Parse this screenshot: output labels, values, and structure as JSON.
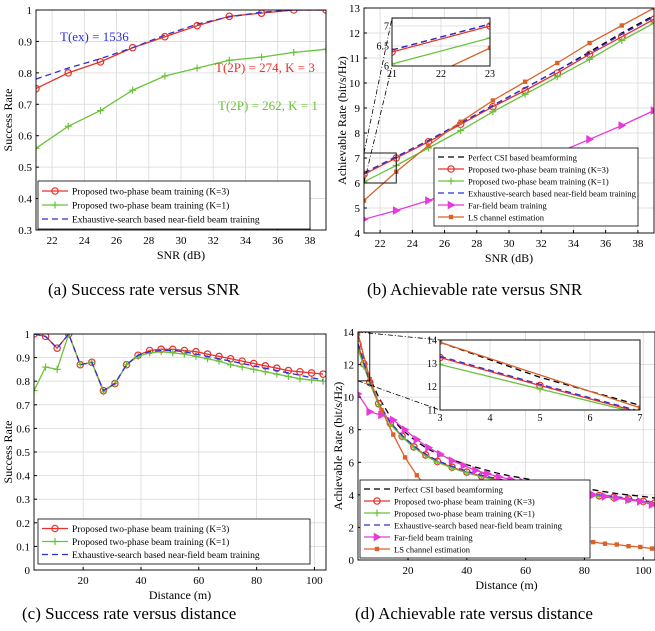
{
  "colors": {
    "red": "#e8312a",
    "green": "#6ac23a",
    "blue": "#2f2fd8",
    "black": "#000000",
    "magenta": "#e83ad8",
    "orange": "#d9622a",
    "grid": "#d9d9d9"
  },
  "chart_data": [
    {
      "type": "line",
      "caption": "(a) Success rate versus SNR",
      "xlabel": "SNR (dB)",
      "ylabel": "Success Rate",
      "xlim": [
        21,
        39
      ],
      "ylim": [
        0.3,
        1
      ],
      "xticks": [
        22,
        24,
        26,
        28,
        30,
        32,
        34,
        36,
        38
      ],
      "yticks": [
        0.3,
        0.4,
        0.5,
        0.6,
        0.7,
        0.8,
        0.9,
        1
      ],
      "ytick_labels": [
        "0.3",
        "0.4",
        "0.5",
        "0.6",
        "0.7",
        "0.8",
        "0.9",
        "1"
      ],
      "grid": true,
      "legend_position": "bottom-left",
      "annotations": [
        {
          "text": "T(ex) = 1536",
          "color": "blue"
        },
        {
          "text": "T(2P) = 274, K = 3",
          "color": "red"
        },
        {
          "text": "T(2P) = 262, K = 1",
          "color": "green"
        }
      ],
      "series": [
        {
          "name": "Proposed two-phase beam training (K=3)",
          "color": "red",
          "marker": "circle",
          "x": [
            21,
            23,
            25,
            27,
            29,
            31,
            33,
            35,
            37,
            39
          ],
          "y": [
            0.75,
            0.8,
            0.835,
            0.88,
            0.915,
            0.95,
            0.98,
            0.99,
            1.0,
            1.0
          ]
        },
        {
          "name": "Proposed two-phase beam training (K=1)",
          "color": "green",
          "marker": "plus",
          "x": [
            21,
            23,
            25,
            27,
            29,
            31,
            33,
            35,
            37,
            39
          ],
          "y": [
            0.56,
            0.63,
            0.68,
            0.745,
            0.79,
            0.815,
            0.84,
            0.85,
            0.865,
            0.875
          ]
        },
        {
          "name": "Exhaustive-search based near-field beam training",
          "color": "blue",
          "dash": "6 4",
          "x": [
            21,
            23,
            25,
            27,
            29,
            31,
            33,
            35,
            37,
            39
          ],
          "y": [
            0.78,
            0.815,
            0.845,
            0.88,
            0.92,
            0.955,
            0.978,
            0.993,
            1.0,
            1.0
          ]
        }
      ]
    },
    {
      "type": "line",
      "caption": "(b) Achievable rate versus SNR",
      "xlabel": "SNR (dB)",
      "ylabel": "Achievable Rate (bit/s/Hz)",
      "xlim": [
        21,
        39
      ],
      "ylim": [
        4,
        13
      ],
      "xticks": [
        22,
        24,
        26,
        28,
        30,
        32,
        34,
        36,
        38
      ],
      "yticks": [
        4,
        5,
        6,
        7,
        8,
        9,
        10,
        11,
        12,
        13
      ],
      "grid": true,
      "legend_position": "bottom-right",
      "series": [
        {
          "name": "Perfect CSI based beamforming",
          "color": "black",
          "dash": "6 4",
          "x": [
            21,
            23,
            25,
            27,
            29,
            31,
            33,
            35,
            37,
            39
          ],
          "y": [
            6.4,
            7.05,
            7.7,
            8.4,
            9.1,
            9.8,
            10.5,
            11.25,
            12.0,
            12.7
          ]
        },
        {
          "name": "Proposed two-phase beam training (K=3)",
          "color": "red",
          "marker": "circle",
          "x": [
            21,
            23,
            25,
            27,
            29,
            31,
            33,
            35,
            37,
            39
          ],
          "y": [
            6.35,
            7.0,
            7.65,
            8.35,
            9.05,
            9.7,
            10.4,
            11.15,
            11.85,
            12.55
          ]
        },
        {
          "name": "Proposed two-phase beam training (K=1)",
          "color": "green",
          "marker": "plus",
          "x": [
            21,
            23,
            25,
            27,
            29,
            31,
            33,
            35,
            37,
            39
          ],
          "y": [
            6.05,
            6.7,
            7.4,
            8.1,
            8.85,
            9.55,
            10.25,
            10.95,
            11.7,
            12.4
          ]
        },
        {
          "name": "Exhaustive-search based near-field beam training",
          "color": "blue",
          "dash": "6 4",
          "x": [
            21,
            23,
            25,
            27,
            29,
            31,
            33,
            35,
            37,
            39
          ],
          "y": [
            6.4,
            7.05,
            7.7,
            8.4,
            9.1,
            9.8,
            10.5,
            11.2,
            11.95,
            12.65
          ]
        },
        {
          "name": "Far-field beam training",
          "color": "magenta",
          "marker": "triangle",
          "x": [
            21,
            23,
            25,
            27,
            29,
            31,
            33,
            35,
            37,
            39
          ],
          "y": [
            4.55,
            4.9,
            5.3,
            5.75,
            6.2,
            6.7,
            7.2,
            7.75,
            8.3,
            8.9
          ]
        },
        {
          "name": "LS channel estimation",
          "color": "orange",
          "marker": "square",
          "x": [
            21,
            23,
            25,
            27,
            29,
            31,
            33,
            35,
            37,
            39
          ],
          "y": [
            5.3,
            6.45,
            7.5,
            8.45,
            9.3,
            10.05,
            10.8,
            11.6,
            12.3,
            13.0
          ]
        }
      ],
      "inset": {
        "xlim": [
          21,
          23
        ],
        "ylim": [
          6,
          7.2
        ],
        "xticks": [
          21,
          22,
          23
        ],
        "yticks": [
          6,
          6.5,
          7
        ],
        "ytick_labels": [
          "6",
          "6.5",
          "7"
        ]
      }
    },
    {
      "type": "line",
      "caption": "(c) Success rate versus distance",
      "xlabel": "Distance (m)",
      "ylabel": "Success Rate",
      "xlim": [
        3,
        104
      ],
      "ylim": [
        0,
        1
      ],
      "xticks": [
        20,
        40,
        60,
        80,
        100
      ],
      "yticks": [
        0,
        0.1,
        0.2,
        0.3,
        0.4,
        0.5,
        0.6,
        0.7,
        0.8,
        0.9,
        1
      ],
      "ytick_labels": [
        "0",
        "0.1",
        "0.2",
        "0.3",
        "0.4",
        "0.5",
        "0.6",
        "0.7",
        "0.8",
        "0.9",
        "1"
      ],
      "grid": true,
      "legend_position": "bottom-left",
      "series": [
        {
          "name": "Proposed two-phase beam training (K=3)",
          "color": "red",
          "marker": "circle",
          "x": [
            3,
            7,
            11,
            15,
            19,
            23,
            27,
            31,
            35,
            39,
            43,
            47,
            51,
            55,
            59,
            63,
            67,
            71,
            75,
            79,
            83,
            87,
            91,
            95,
            99,
            103
          ],
          "y": [
            1.0,
            0.99,
            0.94,
            1.0,
            0.87,
            0.88,
            0.76,
            0.79,
            0.87,
            0.91,
            0.93,
            0.935,
            0.935,
            0.93,
            0.925,
            0.915,
            0.905,
            0.895,
            0.885,
            0.875,
            0.865,
            0.855,
            0.845,
            0.84,
            0.835,
            0.83
          ]
        },
        {
          "name": "Proposed two-phase beam training (K=1)",
          "color": "green",
          "marker": "plus",
          "x": [
            3,
            7,
            11,
            15,
            19,
            23,
            27,
            31,
            35,
            39,
            43,
            47,
            51,
            55,
            59,
            63,
            67,
            71,
            75,
            79,
            83,
            87,
            91,
            95,
            99,
            103
          ],
          "y": [
            0.76,
            0.86,
            0.85,
            1.0,
            0.87,
            0.88,
            0.755,
            0.79,
            0.87,
            0.905,
            0.92,
            0.925,
            0.92,
            0.915,
            0.905,
            0.895,
            0.885,
            0.87,
            0.86,
            0.85,
            0.84,
            0.83,
            0.82,
            0.81,
            0.805,
            0.8
          ]
        },
        {
          "name": "Exhaustive-search based near-field beam training",
          "color": "blue",
          "dash": "6 4",
          "x": [
            3,
            7,
            11,
            15,
            19,
            23,
            27,
            31,
            35,
            39,
            43,
            47,
            51,
            55,
            59,
            63,
            67,
            71,
            75,
            79,
            83,
            87,
            91,
            95,
            99,
            103
          ],
          "y": [
            1.0,
            0.99,
            0.94,
            1.0,
            0.87,
            0.88,
            0.76,
            0.79,
            0.87,
            0.91,
            0.925,
            0.93,
            0.93,
            0.925,
            0.915,
            0.905,
            0.895,
            0.885,
            0.875,
            0.865,
            0.855,
            0.845,
            0.835,
            0.825,
            0.815,
            0.805
          ]
        }
      ]
    },
    {
      "type": "line",
      "caption": "(d) Achievable rate versus distance",
      "xlabel": "Distance (m)",
      "ylabel": "Achievable Rate (bit/s/Hz)",
      "xlim": [
        3,
        104
      ],
      "ylim": [
        0,
        14
      ],
      "xticks": [
        20,
        40,
        60,
        80,
        100
      ],
      "yticks": [
        0,
        2,
        4,
        6,
        8,
        10,
        12,
        14
      ],
      "grid": true,
      "legend_position": "bottom-left",
      "series": [
        {
          "name": "Perfect CSI based beamforming",
          "color": "black",
          "dash": "6 4",
          "x": [
            3,
            5,
            7,
            10,
            14,
            18,
            22,
            26,
            30,
            35,
            40,
            45,
            50,
            55,
            60,
            65,
            70,
            75,
            80,
            85,
            90,
            95,
            100,
            104
          ],
          "y": [
            13.9,
            12.4,
            11.2,
            10.0,
            8.8,
            8.0,
            7.4,
            6.9,
            6.5,
            6.15,
            5.85,
            5.6,
            5.35,
            5.15,
            5.0,
            4.8,
            4.65,
            4.5,
            4.4,
            4.25,
            4.1,
            4.0,
            3.9,
            3.8
          ]
        },
        {
          "name": "Proposed two-phase beam training (K=3)",
          "color": "red",
          "marker": "circle",
          "x": [
            3,
            5,
            7,
            10,
            14,
            18,
            22,
            26,
            30,
            35,
            40,
            45,
            50,
            55,
            60,
            65,
            70,
            75,
            80,
            85,
            90,
            95,
            100,
            104
          ],
          "y": [
            13.25,
            12.05,
            10.9,
            9.6,
            8.4,
            7.6,
            6.95,
            6.45,
            6.05,
            5.7,
            5.4,
            5.15,
            4.95,
            4.75,
            4.6,
            4.45,
            4.3,
            4.2,
            4.05,
            3.95,
            3.85,
            3.75,
            3.6,
            3.5
          ]
        },
        {
          "name": "Proposed two-phase beam training (K=1)",
          "color": "green",
          "marker": "plus",
          "x": [
            3,
            5,
            7,
            10,
            14,
            18,
            22,
            26,
            30,
            35,
            40,
            45,
            50,
            55,
            60,
            65,
            70,
            75,
            80,
            85,
            90,
            95,
            100,
            104
          ],
          "y": [
            12.95,
            11.9,
            10.85,
            9.55,
            8.35,
            7.55,
            6.9,
            6.4,
            6.0,
            5.65,
            5.35,
            5.1,
            4.9,
            4.7,
            4.55,
            4.4,
            4.25,
            4.15,
            4.0,
            3.9,
            3.8,
            3.7,
            3.55,
            3.45
          ]
        },
        {
          "name": "Exhaustive-search based near-field beam training",
          "color": "blue",
          "dash": "6 4",
          "x": [
            3,
            5,
            7,
            10,
            14,
            18,
            22,
            26,
            30,
            35,
            40,
            45,
            50,
            55,
            60,
            65,
            70,
            75,
            80,
            85,
            90,
            95,
            100,
            104
          ],
          "y": [
            13.3,
            12.1,
            10.95,
            9.65,
            8.45,
            7.65,
            7.0,
            6.5,
            6.1,
            5.75,
            5.45,
            5.2,
            5.0,
            4.8,
            4.65,
            4.5,
            4.35,
            4.25,
            4.1,
            4.0,
            3.9,
            3.8,
            3.65,
            3.55
          ]
        },
        {
          "name": "Far-field beam training",
          "color": "magenta",
          "marker": "triangle",
          "x": [
            3,
            7,
            11,
            15,
            19,
            23,
            27,
            31,
            35,
            39,
            43,
            47,
            51,
            55,
            59,
            63,
            67,
            71,
            75,
            79,
            83,
            87,
            91,
            95,
            99,
            103
          ],
          "y": [
            10.2,
            9.1,
            8.9,
            8.6,
            8.0,
            7.4,
            6.9,
            6.5,
            6.1,
            5.8,
            5.5,
            5.3,
            5.1,
            4.95,
            4.8,
            4.65,
            4.5,
            4.4,
            4.25,
            4.1,
            4.0,
            3.9,
            3.8,
            3.7,
            3.6,
            3.4
          ]
        },
        {
          "name": "LS channel estimation",
          "color": "orange",
          "marker": "square",
          "x": [
            3,
            7,
            11,
            15,
            19,
            23,
            27,
            31,
            35,
            39,
            43,
            47,
            51,
            55,
            59,
            63,
            67,
            71,
            75,
            79,
            83,
            87,
            91,
            95,
            99,
            103
          ],
          "y": [
            13.9,
            11.1,
            9.2,
            7.7,
            6.3,
            5.2,
            4.3,
            3.6,
            3.05,
            2.6,
            2.3,
            2.1,
            1.9,
            1.75,
            1.6,
            1.5,
            1.4,
            1.35,
            1.25,
            1.2,
            1.1,
            1.0,
            0.95,
            0.85,
            0.8,
            0.7
          ]
        }
      ],
      "inset": {
        "xlim": [
          3,
          7
        ],
        "ylim": [
          11,
          14
        ],
        "xticks": [
          3,
          4,
          5,
          6,
          7
        ],
        "yticks": [
          11,
          12,
          13,
          14
        ]
      }
    }
  ]
}
